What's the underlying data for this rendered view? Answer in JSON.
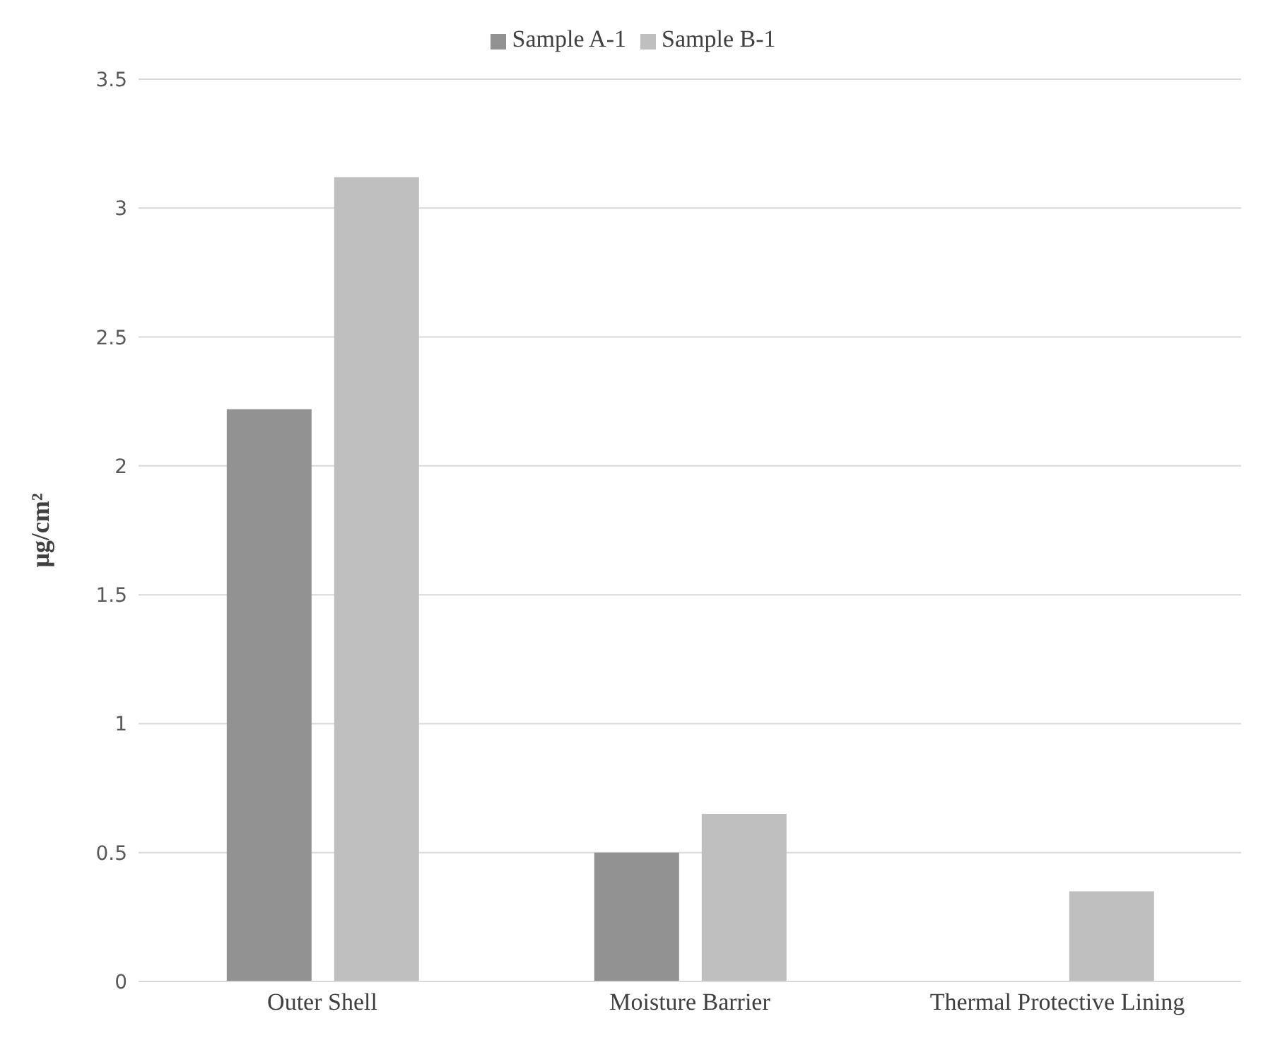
{
  "chart_data": {
    "type": "bar",
    "ylabel": "μg/cm²",
    "categories": [
      "Outer Shell",
      "Moisture Barrier",
      "Thermal Protective Lining"
    ],
    "series": [
      {
        "name": "Sample A-1",
        "color": "#929292",
        "values": [
          2.22,
          0.5,
          null
        ]
      },
      {
        "name": "Sample B-1",
        "color": "#bfbfbf",
        "values": [
          3.12,
          0.65,
          0.35
        ]
      }
    ],
    "ylim": [
      0,
      3.5
    ],
    "yticks": [
      0,
      0.5,
      1,
      1.5,
      2,
      2.5,
      3,
      3.5
    ],
    "grid": "y",
    "legend": "top"
  }
}
